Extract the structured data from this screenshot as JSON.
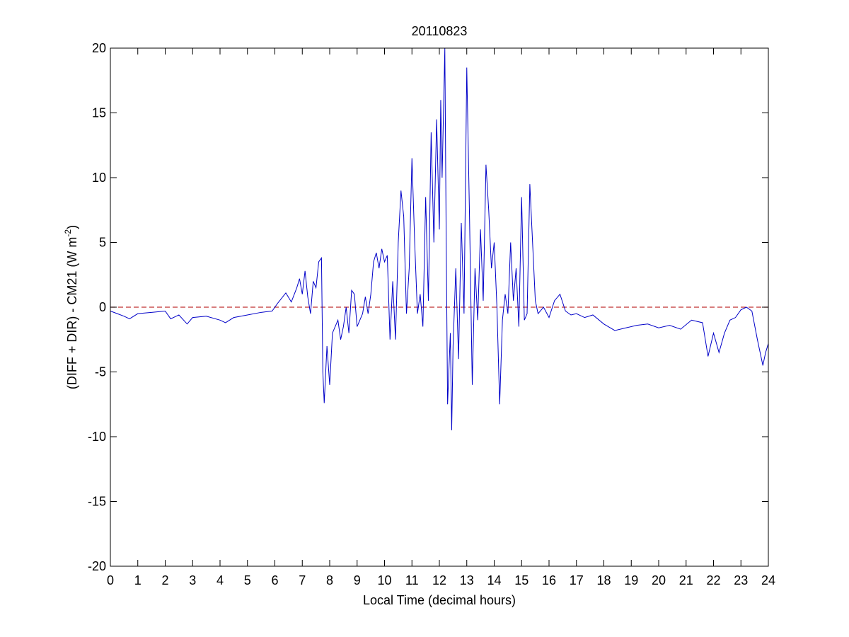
{
  "chart_data": {
    "type": "line",
    "title": "20110823",
    "xlabel": "Local Time (decimal hours)",
    "ylabel": {
      "text": "(DIFF + DIR) - CM21 (W m",
      "superscript": "-2",
      "suffix": ")"
    },
    "xlim": [
      0,
      24
    ],
    "xticks": [
      0,
      1,
      2,
      3,
      4,
      5,
      6,
      7,
      8,
      9,
      10,
      11,
      12,
      13,
      14,
      15,
      16,
      17,
      18,
      19,
      20,
      21,
      22,
      23,
      24
    ],
    "ylim": [
      -20,
      20
    ],
    "yticks": [
      -20,
      -15,
      -10,
      -5,
      0,
      5,
      10,
      15,
      20
    ],
    "reference_line": {
      "value": 0,
      "color": "#c03030",
      "dashed": true
    },
    "series": [
      {
        "color": "#0000c8",
        "x": [
          0,
          0.25,
          0.5,
          0.7,
          1,
          1.5,
          2,
          2.2,
          2.5,
          2.8,
          3,
          3.5,
          4,
          4.2,
          4.5,
          5,
          5.5,
          5.9,
          6.1,
          6.4,
          6.6,
          6.8,
          6.9,
          7.0,
          7.1,
          7.2,
          7.3,
          7.4,
          7.5,
          7.6,
          7.7,
          7.75,
          7.8,
          7.9,
          8.0,
          8.1,
          8.2,
          8.3,
          8.4,
          8.5,
          8.6,
          8.7,
          8.8,
          8.9,
          9.0,
          9.1,
          9.2,
          9.3,
          9.4,
          9.5,
          9.6,
          9.7,
          9.8,
          9.9,
          10.0,
          10.1,
          10.2,
          10.3,
          10.4,
          10.5,
          10.6,
          10.7,
          10.8,
          10.9,
          11.0,
          11.1,
          11.2,
          11.3,
          11.4,
          11.5,
          11.6,
          11.7,
          11.8,
          11.9,
          12.0,
          12.05,
          12.1,
          12.2,
          12.25,
          12.3,
          12.4,
          12.45,
          12.5,
          12.6,
          12.7,
          12.8,
          12.9,
          13.0,
          13.1,
          13.2,
          13.3,
          13.4,
          13.5,
          13.6,
          13.7,
          13.8,
          13.9,
          14.0,
          14.1,
          14.2,
          14.3,
          14.4,
          14.5,
          14.6,
          14.7,
          14.8,
          14.9,
          15.0,
          15.1,
          15.2,
          15.3,
          15.4,
          15.5,
          15.6,
          15.8,
          16.0,
          16.2,
          16.4,
          16.6,
          16.8,
          17.0,
          17.3,
          17.6,
          18.0,
          18.4,
          18.8,
          19.2,
          19.6,
          20.0,
          20.4,
          20.8,
          21.2,
          21.6,
          21.8,
          22.0,
          22.2,
          22.4,
          22.6,
          22.8,
          23.0,
          23.2,
          23.4,
          23.6,
          23.8,
          23.9,
          24.0
        ],
        "values": [
          -0.3,
          -0.5,
          -0.7,
          -0.9,
          -0.5,
          -0.4,
          -0.3,
          -0.9,
          -0.6,
          -1.3,
          -0.8,
          -0.7,
          -1.0,
          -1.2,
          -0.8,
          -0.6,
          -0.4,
          -0.3,
          0.3,
          1.1,
          0.4,
          1.5,
          2.2,
          1.0,
          2.8,
          0.8,
          -0.5,
          2.0,
          1.5,
          3.5,
          3.8,
          -5.0,
          -7.4,
          -3.0,
          -6.0,
          -2.0,
          -1.5,
          -1.0,
          -2.5,
          -1.5,
          0.0,
          -2.0,
          1.3,
          1.0,
          -1.5,
          -1.0,
          -0.5,
          0.8,
          -0.5,
          1.0,
          3.5,
          4.2,
          3.0,
          4.5,
          3.5,
          4.0,
          -2.5,
          2.0,
          -2.5,
          5.0,
          9.0,
          7.0,
          -0.5,
          3.0,
          11.5,
          5.0,
          -0.5,
          1.0,
          -1.5,
          8.5,
          0.5,
          13.5,
          5.0,
          14.5,
          6.0,
          16.0,
          10.0,
          20,
          5.0,
          -7.5,
          -2.0,
          -9.5,
          -3.0,
          3.0,
          -4.0,
          6.5,
          -0.5,
          18.5,
          7.0,
          -6.0,
          3.0,
          -1.0,
          6.0,
          0.5,
          11.0,
          7.5,
          3.0,
          5.0,
          0.0,
          -7.5,
          -1.0,
          1.0,
          -0.5,
          5.0,
          0.5,
          3.0,
          -1.5,
          8.5,
          -1.0,
          -0.5,
          9.5,
          5.0,
          0.5,
          -0.5,
          0.0,
          -0.8,
          0.5,
          1.0,
          -0.3,
          -0.6,
          -0.5,
          -0.8,
          -0.6,
          -1.3,
          -1.8,
          -1.6,
          -1.4,
          -1.3,
          -1.6,
          -1.4,
          -1.7,
          -1.0,
          -1.2,
          -3.8,
          -2.0,
          -3.5,
          -2.0,
          -1.0,
          -0.8,
          -0.2,
          0.0,
          -0.3,
          -2.5,
          -4.5,
          -3.5,
          -2.8
        ]
      }
    ]
  }
}
